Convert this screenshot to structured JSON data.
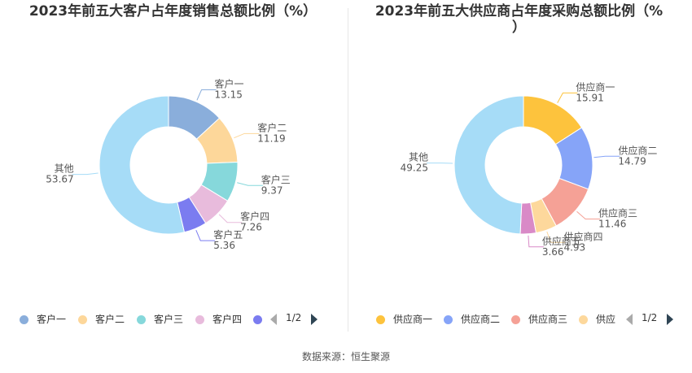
{
  "source": "数据来源：恒生聚源",
  "chart_data": [
    {
      "type": "pie",
      "title": "2023年前五大客户占年度销售总额比例（%）",
      "categories": [
        "客户一",
        "客户二",
        "客户三",
        "客户四",
        "客户五",
        "其他"
      ],
      "values": [
        13.15,
        11.19,
        9.37,
        7.26,
        5.36,
        53.67
      ],
      "value_labels": [
        "13.15",
        "11.19",
        "9.37",
        "7.26",
        "5.36",
        "53.67"
      ],
      "colors": [
        "#8aaedb",
        "#fdd79a",
        "#86d8db",
        "#e8bbdc",
        "#7b7cf0",
        "#a6dcf7"
      ],
      "legend": {
        "position": "bottom",
        "items": [
          "客户一",
          "客户二",
          "客户三",
          "客户四"
        ],
        "colors": [
          "#8aaedb",
          "#fdd79a",
          "#86d8db",
          "#e8bbdc",
          "#7b7cf0"
        ],
        "page": "1/2"
      }
    },
    {
      "type": "pie",
      "title": "2023年前五大供应商占年度采购总额比例（%\n）",
      "categories": [
        "供应商一",
        "供应商二",
        "供应商三",
        "供应商四",
        "供应商五",
        "其他"
      ],
      "values": [
        15.91,
        14.79,
        11.46,
        4.93,
        3.66,
        49.25
      ],
      "value_labels": [
        "15.91",
        "14.79",
        "11.46",
        "4.93",
        "3.66",
        "49.25"
      ],
      "colors": [
        "#fdc33d",
        "#86a4f8",
        "#f5a196",
        "#fdd89c",
        "#d98ac7",
        "#a6dcf7"
      ],
      "legend": {
        "position": "bottom",
        "items": [
          "供应商一",
          "供应商二",
          "供应商三",
          "供应"
        ],
        "colors": [
          "#fdc33d",
          "#86a4f8",
          "#f5a196",
          "#fdd89c"
        ],
        "page": "1/2"
      }
    }
  ]
}
